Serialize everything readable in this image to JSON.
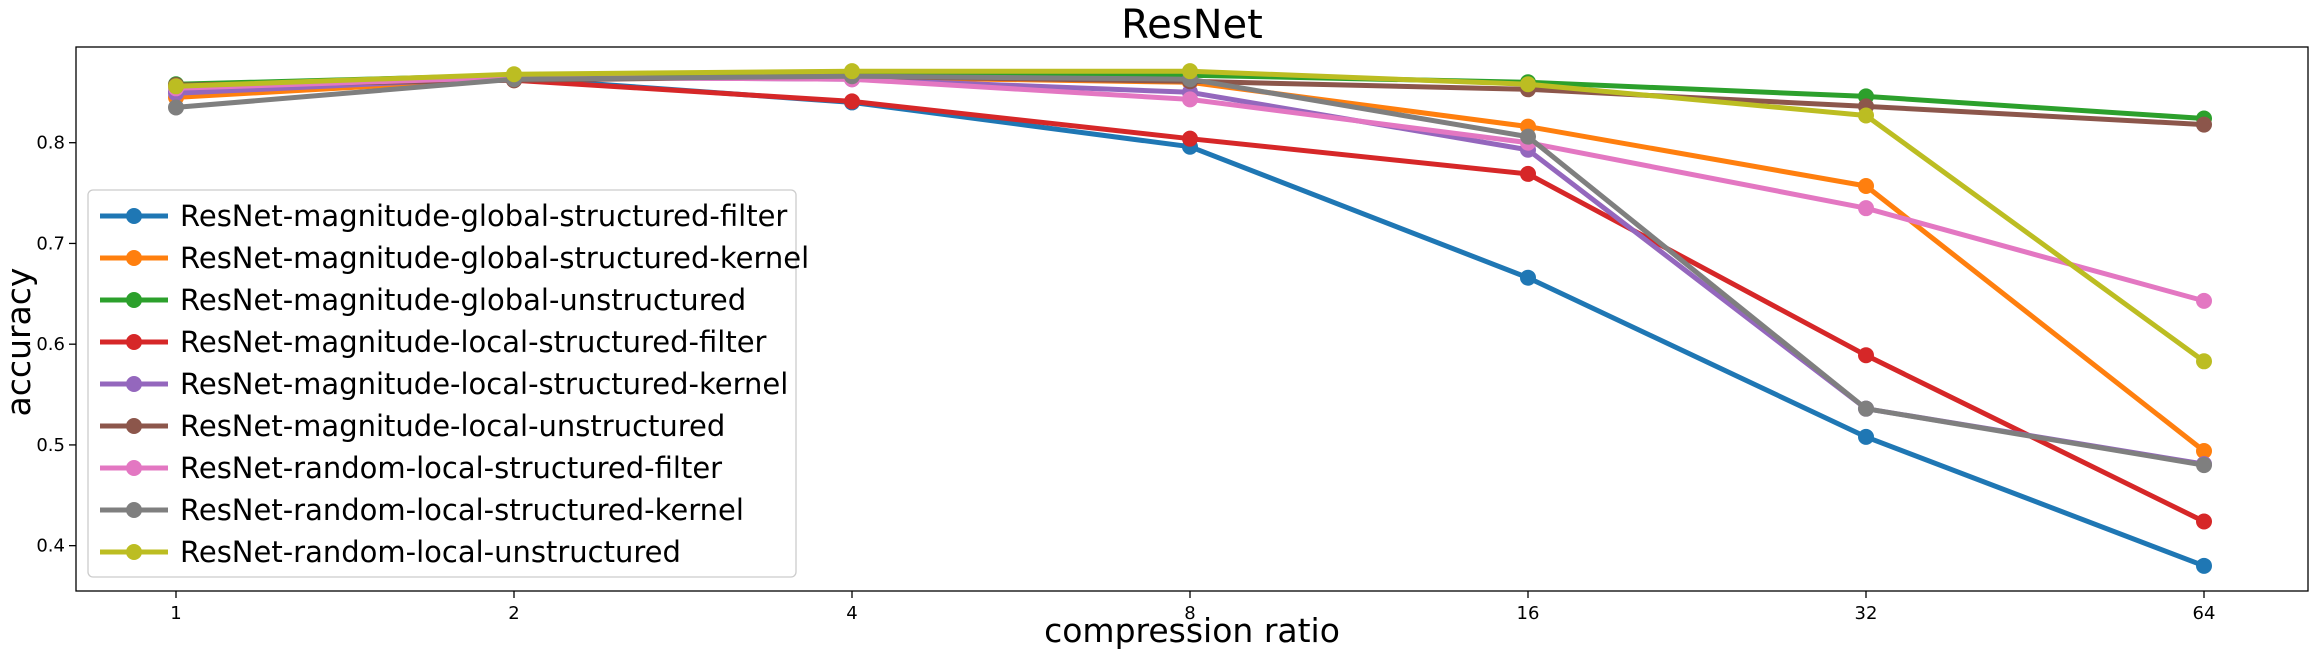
{
  "chart_data": {
    "type": "line",
    "title": "ResNet",
    "xlabel": "compression ratio",
    "ylabel": "accuracy",
    "x_scale": "log2",
    "x": [
      1,
      2,
      4,
      8,
      16,
      32,
      64
    ],
    "x_tick_labels": [
      "1",
      "2",
      "4",
      "8",
      "16",
      "32",
      "64"
    ],
    "y_ticks": [
      0.4,
      0.5,
      0.6,
      0.7,
      0.8
    ],
    "y_tick_labels": [
      "0.4",
      "0.5",
      "0.6",
      "0.7",
      "0.8"
    ],
    "ylim": [
      0.355,
      0.895
    ],
    "grid": false,
    "legend_position": "left",
    "series": [
      {
        "name": "ResNet-magnitude-global-structured-filter",
        "color": "#1f77b4",
        "values": [
          0.851,
          0.864,
          0.84,
          0.796,
          0.666,
          0.508,
          0.38
        ]
      },
      {
        "name": "ResNet-magnitude-global-structured-kernel",
        "color": "#ff7f0e",
        "values": [
          0.845,
          0.864,
          0.865,
          0.86,
          0.816,
          0.757,
          0.494
        ]
      },
      {
        "name": "ResNet-magnitude-global-unstructured",
        "color": "#2ca02c",
        "values": [
          0.858,
          0.867,
          0.868,
          0.867,
          0.86,
          0.846,
          0.824
        ]
      },
      {
        "name": "ResNet-magnitude-local-structured-filter",
        "color": "#d62728",
        "values": [
          0.857,
          0.862,
          0.841,
          0.804,
          0.769,
          0.589,
          0.424
        ]
      },
      {
        "name": "ResNet-magnitude-local-structured-kernel",
        "color": "#9467bd",
        "values": [
          0.849,
          0.865,
          0.863,
          0.85,
          0.793,
          0.536,
          0.481
        ]
      },
      {
        "name": "ResNet-magnitude-local-unstructured",
        "color": "#8c564b",
        "values": [
          0.857,
          0.862,
          0.866,
          0.861,
          0.853,
          0.836,
          0.818
        ]
      },
      {
        "name": "ResNet-random-local-structured-filter",
        "color": "#e377c2",
        "values": [
          0.854,
          0.865,
          0.863,
          0.843,
          0.8,
          0.735,
          0.643
        ]
      },
      {
        "name": "ResNet-random-local-structured-kernel",
        "color": "#7f7f7f",
        "values": [
          0.835,
          0.863,
          0.866,
          0.863,
          0.806,
          0.536,
          0.48
        ]
      },
      {
        "name": "ResNet-random-local-unstructured",
        "color": "#bcbd22",
        "values": [
          0.856,
          0.868,
          0.871,
          0.871,
          0.858,
          0.827,
          0.583
        ]
      }
    ]
  }
}
